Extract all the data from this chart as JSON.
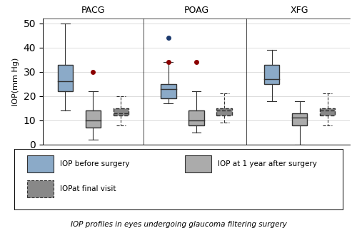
{
  "groups": [
    "PACG",
    "POAG",
    "XFG"
  ],
  "series_labels": [
    "IOP before surgery",
    "IOP at 1 year after surgery",
    "IOPat final visit"
  ],
  "series_colors": [
    "#8BAAC8",
    "#ABABAB",
    "#888888"
  ],
  "ylim": [
    0,
    52
  ],
  "yticks": [
    0,
    10,
    20,
    30,
    40,
    50
  ],
  "ylabel": "IOP(mm Hg)",
  "subtitle": "IOP profiles in eyes undergoing glaucoma filtering surgery",
  "box_data": {
    "PACG": {
      "before": {
        "q1": 22,
        "median": 26,
        "q3": 33,
        "whislo": 14,
        "whishi": 50
      },
      "year1": {
        "q1": 7,
        "median": 10,
        "q3": 14,
        "whislo": 2,
        "whishi": 22
      },
      "final": {
        "q1": 12,
        "median": 13,
        "q3": 15,
        "whislo": 8,
        "whishi": 20
      }
    },
    "POAG": {
      "before": {
        "q1": 19,
        "median": 23,
        "q3": 25,
        "whislo": 17,
        "whishi": 34
      },
      "year1": {
        "q1": 8,
        "median": 10,
        "q3": 14,
        "whislo": 5,
        "whishi": 22
      },
      "final": {
        "q1": 12,
        "median": 14,
        "q3": 15,
        "whislo": 9,
        "whishi": 21
      }
    },
    "XFG": {
      "before": {
        "q1": 25,
        "median": 27,
        "q3": 33,
        "whislo": 18,
        "whishi": 39
      },
      "year1": {
        "q1": 8,
        "median": 11,
        "q3": 13,
        "whislo": 0,
        "whishi": 18
      },
      "final": {
        "q1": 12,
        "median": 14,
        "q3": 15,
        "whislo": 8,
        "whishi": 21
      }
    }
  },
  "outliers": {
    "PACG": {
      "before": [],
      "year1": [
        {
          "val": 30,
          "color": "#8B0000"
        }
      ],
      "final": []
    },
    "POAG": {
      "before": [
        {
          "val": 44,
          "color": "#1C3A6E"
        },
        {
          "val": 34,
          "color": "#8B0000"
        }
      ],
      "year1": [
        {
          "val": 34,
          "color": "#8B0000"
        }
      ],
      "final": []
    },
    "XFG": {
      "before": [],
      "year1": [],
      "final": []
    }
  },
  "background_color": "#FFFFFF",
  "grid_color": "#D8D8D8",
  "box_width": 0.55,
  "group_centers": [
    1.8,
    5.5,
    9.2
  ],
  "series_offsets": [
    -1.0,
    0.0,
    1.0
  ],
  "facet_boundaries": [
    0.0,
    3.6,
    7.3,
    11.0
  ]
}
